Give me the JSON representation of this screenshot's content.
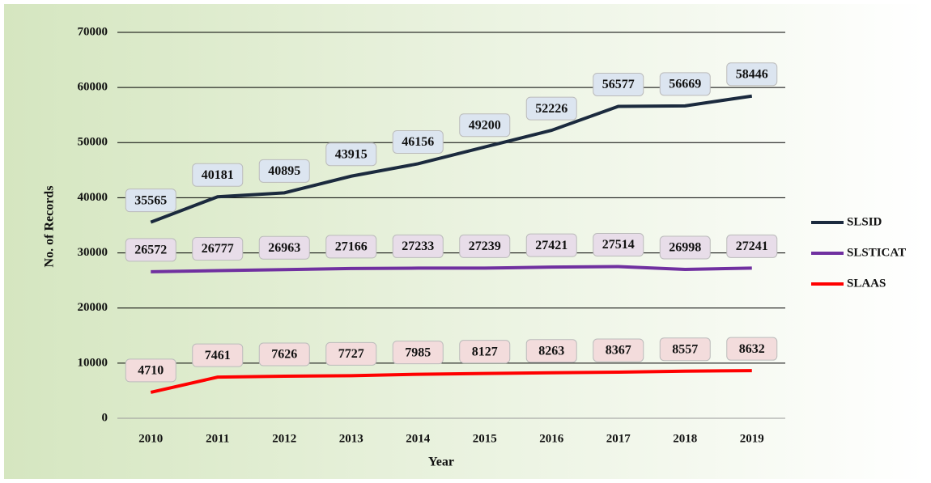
{
  "chart_data": {
    "type": "line",
    "x_label": "Year",
    "y_label": "No. of Records",
    "categories": [
      "2010",
      "2011",
      "2012",
      "2013",
      "2014",
      "2015",
      "2016",
      "2017",
      "2018",
      "2019"
    ],
    "series": [
      {
        "name": "SLSID",
        "color": "#1b2a3e",
        "label_fill": "#dce5f0",
        "values": [
          35565,
          40181,
          40895,
          43915,
          46156,
          49200,
          52226,
          56577,
          56669,
          58446
        ]
      },
      {
        "name": "SLSTICAT",
        "color": "#7030a0",
        "label_fill": "#e8dde9",
        "values": [
          26572,
          26777,
          26963,
          27166,
          27233,
          27239,
          27421,
          27514,
          26998,
          27241
        ]
      },
      {
        "name": "SLAAS",
        "color": "#ff0000",
        "label_fill": "#f3dcdc",
        "values": [
          4710,
          7461,
          7626,
          7727,
          7985,
          8127,
          8263,
          8367,
          8557,
          8632
        ]
      }
    ],
    "ylim": [
      0,
      70000
    ],
    "yticks": [
      0,
      10000,
      20000,
      30000,
      40000,
      50000,
      60000,
      70000
    ],
    "grid": true,
    "legend": "right"
  }
}
